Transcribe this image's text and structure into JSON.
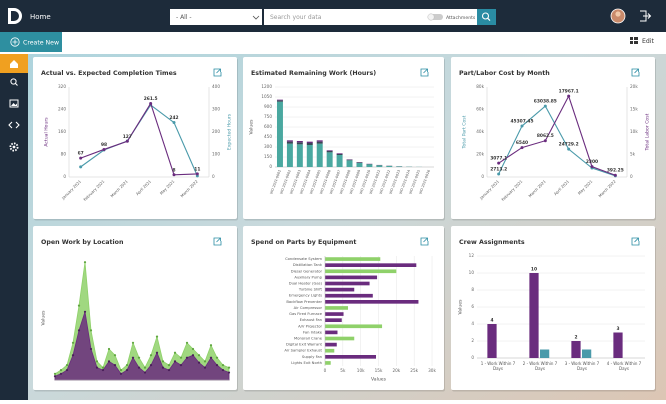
{
  "header": {
    "title": "Home",
    "filter": "- All -",
    "search_placeholder": "Search your data",
    "toggle_label": "Attachments"
  },
  "toolbar": {
    "create": "Create New",
    "edit": "Edit"
  },
  "panels": [
    {
      "type": "line",
      "title": "Actual vs. Expected Completion Times",
      "categories": [
        "January 2021",
        "February 2021",
        "March 2021",
        "April 2021",
        "May 2021",
        "March 2022"
      ],
      "ylabel": "Actual Hours",
      "y2label": "Expected Hours",
      "ylim": [
        0,
        320
      ],
      "yticks": [
        0,
        80,
        160,
        240,
        320
      ],
      "y2lim": [
        0,
        400
      ],
      "y2ticks": [
        0,
        100,
        200,
        300,
        400
      ],
      "series": [
        {
          "color": "#4a9aaa",
          "axis": "y2",
          "values": [
            45,
            120,
            160,
            320,
            242,
            5
          ],
          "value_labels": [
            null,
            null,
            null,
            null,
            "242",
            null
          ]
        },
        {
          "color": "#6a2c7e",
          "labels": true,
          "values": [
            67,
            98,
            127,
            261.5,
            8,
            11
          ]
        }
      ]
    },
    {
      "type": "stacked_bar",
      "title": "Estimated Remaining Work (Hours)",
      "ylabel": "Values",
      "grid": true,
      "categories": [
        "WO 2021-0001",
        "WO 2021-0002",
        "WO 2021-0003",
        "WO 2021-0004",
        "WO 2021-0005",
        "WO 2021-0006",
        "WO 2021-0007",
        "WO 2021-0008",
        "WO 2021-0009",
        "WO 2021-0010",
        "WO 2021-0011",
        "WO 2021-0012",
        "WO 2021-0013",
        "WO 2021-0014",
        "WO 2021-0015",
        "WO 2021-0016"
      ],
      "ylim": [
        0,
        1200
      ],
      "yticks": [
        0,
        150,
        300,
        450,
        600,
        750,
        900,
        1050,
        1200
      ],
      "series": [
        {
          "color": "#4aa8a0",
          "values": [
            980,
            350,
            340,
            330,
            350,
            220,
            180,
            100,
            60,
            40,
            25,
            15,
            8,
            4,
            2,
            0
          ]
        },
        {
          "color": "#3a4656",
          "values": [
            20,
            30,
            30,
            30,
            30,
            20,
            15,
            10,
            8,
            5,
            4,
            3,
            2,
            1,
            0,
            0
          ]
        },
        {
          "color": "#6a2c7e",
          "values": [
            10,
            20,
            20,
            20,
            20,
            10,
            10,
            5,
            4,
            3,
            2,
            1,
            1,
            0,
            0,
            0
          ]
        }
      ]
    },
    {
      "type": "line",
      "title": "Part/Labor Cost by Month",
      "categories": [
        "January 2021",
        "February 2021",
        "March 2021",
        "April 2021",
        "May 2021",
        "March 2022"
      ],
      "ylabel": "Total Part Cost",
      "y2label": "Total Labor Cost",
      "ylim": [
        0,
        80000
      ],
      "yticks": [
        0,
        {
          "value": 20000,
          "label": "20k"
        },
        {
          "value": 40000,
          "label": "40k"
        },
        {
          "value": 60000,
          "label": "60k"
        },
        {
          "value": 80000,
          "label": "80k"
        }
      ],
      "y2lim": [
        0,
        20000
      ],
      "y2ticks": [
        0,
        {
          "value": 5000,
          "label": "5k"
        },
        {
          "value": 10000,
          "label": "10k"
        },
        {
          "value": 15000,
          "label": "15k"
        },
        {
          "value": 20000,
          "label": "20k"
        }
      ],
      "series": [
        {
          "color": "#4a9aaa",
          "values": [
            2713.2,
            45307.45,
            63038.85,
            24729.2,
            8000,
            1000
          ],
          "value_labels": [
            "2713.2",
            "45307.45",
            "63038.85",
            "24729.2",
            null,
            null
          ]
        },
        {
          "color": "#6a2c7e",
          "axis": "y2",
          "labels": true,
          "values": [
            3077.1,
            6540,
            8062.5,
            17967.1,
            2300,
            392.25
          ]
        }
      ]
    },
    {
      "type": "area",
      "title": "Open Work by Location",
      "ylabel": "Values",
      "ylim": [
        0,
        100
      ],
      "series": [
        {
          "color": "#8fd16a",
          "values": [
            5,
            8,
            12,
            30,
            60,
            95,
            40,
            15,
            10,
            25,
            20,
            8,
            12,
            30,
            18,
            10,
            20,
            35,
            15,
            12,
            22,
            18,
            30,
            25,
            20,
            15,
            28,
            18,
            12,
            10
          ]
        },
        {
          "color": "#6a2c7e",
          "values": [
            3,
            5,
            8,
            20,
            40,
            55,
            25,
            10,
            8,
            15,
            12,
            5,
            8,
            18,
            10,
            6,
            12,
            22,
            10,
            8,
            15,
            12,
            18,
            20,
            14,
            10,
            18,
            12,
            8,
            6
          ]
        }
      ]
    },
    {
      "type": "hbar",
      "title": "Spend on Parts by Equipment",
      "xlabel": "Values",
      "grid": true,
      "categories": [
        "Condensate System",
        "Distillation Tank",
        "Diesel Generator",
        "Auxiliary Pump",
        "Dual Heater (Gas)",
        "Turbine Shift",
        "Emergency Lights",
        "Backflow Preventer",
        "Air Compressor",
        "Gas Fired Furnace",
        "Exhaust Fan",
        "A/V Projector",
        "Fan Intake",
        "Monorail Crane",
        "Digital Exit Warrant",
        "Air Sampler Exhaust",
        "Supply Fan",
        "Lights Exit North"
      ],
      "xlim": [
        0,
        30000
      ],
      "xticks": [
        0,
        {
          "value": 5000,
          "label": "5k"
        },
        {
          "value": 10000,
          "label": "10k"
        },
        {
          "value": 15000,
          "label": "15k"
        },
        {
          "value": 20000,
          "label": "20k"
        },
        {
          "value": 25000,
          "label": "25k"
        },
        {
          "value": 30000,
          "label": "30k"
        }
      ],
      "series": [
        {
          "color": "#8fd16a",
          "values": [
            15500,
            0,
            20000,
            0,
            0,
            0,
            0,
            0,
            6450,
            0,
            0,
            16000,
            0,
            8200,
            0,
            2600,
            0,
            1600
          ]
        },
        {
          "color": "#6a2c7e",
          "values": [
            0,
            25600,
            0,
            14600,
            12500,
            8200,
            13400,
            26200,
            0,
            5200,
            4700,
            0,
            3500,
            0,
            3300,
            0,
            14300,
            0
          ]
        }
      ]
    },
    {
      "type": "bar",
      "title": "Crew Assignments",
      "ylabel": "Values",
      "grid": true,
      "categories": [
        "1 - Work Within 7 Days",
        "2 - Work Within 7 Days",
        "3 - Work Within 7 Days",
        "4 - Work Within 7 Days"
      ],
      "ylim": [
        0,
        12
      ],
      "yticks": [
        0,
        2,
        4,
        6,
        8,
        10,
        12
      ],
      "series": [
        {
          "color": "#6a2c7e",
          "labels": true,
          "values": [
            4,
            10,
            2,
            3
          ]
        },
        {
          "color": "#4a9aaa",
          "values": [
            0,
            1,
            1,
            0
          ]
        }
      ]
    }
  ]
}
